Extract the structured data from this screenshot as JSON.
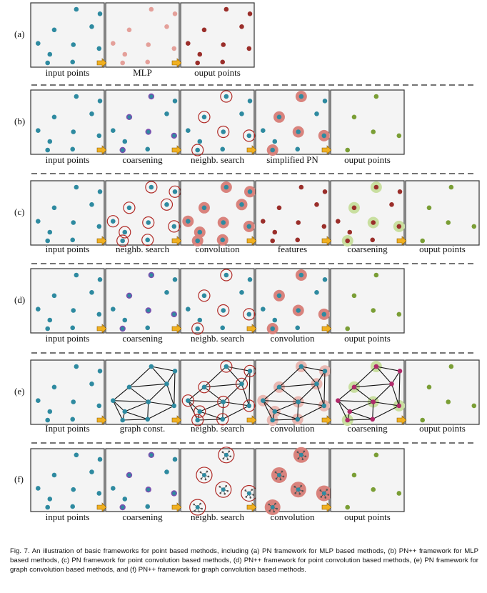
{
  "rows": [
    {
      "label": "(a)",
      "panels": [
        {
          "label": "input points",
          "type": "input"
        },
        {
          "label": "MLP",
          "type": "mlp"
        },
        {
          "label": "ouput points",
          "type": "output_red"
        }
      ]
    },
    {
      "label": "(b)",
      "panels": [
        {
          "label": "input points",
          "type": "input"
        },
        {
          "label": "coarsening",
          "type": "coarsen"
        },
        {
          "label": "neighb. search",
          "type": "neigh"
        },
        {
          "label": "simplified PN",
          "type": "simplepn"
        },
        {
          "label": "ouput points",
          "type": "green"
        }
      ]
    },
    {
      "label": "(c)",
      "panels": [
        {
          "label": "input points",
          "type": "input"
        },
        {
          "label": "neighb. search",
          "type": "neigh_all"
        },
        {
          "label": "convolution",
          "type": "conv_all"
        },
        {
          "label": "features",
          "type": "features"
        },
        {
          "label": "coarsening",
          "type": "coarsen_green"
        },
        {
          "label": "ouput points",
          "type": "green"
        }
      ]
    },
    {
      "label": "(d)",
      "panels": [
        {
          "label": "input points",
          "type": "input"
        },
        {
          "label": "coarsening",
          "type": "coarsen"
        },
        {
          "label": "neighb. search",
          "type": "neigh"
        },
        {
          "label": "convolution",
          "type": "conv"
        },
        {
          "label": "ouput points",
          "type": "green"
        }
      ]
    },
    {
      "label": "(e)",
      "panels": [
        {
          "label": "Input points",
          "type": "input"
        },
        {
          "label": "graph const.",
          "type": "graph"
        },
        {
          "label": "neighb. search",
          "type": "graph_neigh"
        },
        {
          "label": "convolution",
          "type": "graph_conv"
        },
        {
          "label": "coarsening",
          "type": "graph_coarsen"
        },
        {
          "label": "ouput points",
          "type": "green"
        }
      ]
    },
    {
      "label": "(f)",
      "panels": [
        {
          "label": "input points",
          "type": "input"
        },
        {
          "label": "coarsening",
          "type": "coarsen"
        },
        {
          "label": "neighb. search",
          "type": "mini_neigh"
        },
        {
          "label": "convolution",
          "type": "mini_conv"
        },
        {
          "label": "ouput points",
          "type": "green"
        }
      ]
    }
  ],
  "caption": "Fig. 7.  An illustration of basic frameworks for point based methods, including (a) PN framework for MLP based methods, (b) PN++ framework for MLP based methods, (c) PN framework for point convolution based methods, (d) PN++ framework for point convolution based methods, (e) PN framework for graph convolution based methods, and (f) PN++ framework for graph convolution based methods.",
  "colors": {
    "teal": "#2e8aa0",
    "pink": "#e4a09a",
    "darkred": "#9a2e2a",
    "green": "#7a9e35",
    "purple": "#7b4fb0",
    "ring": "#b02a26",
    "halo": "#d9837d",
    "greenhalo": "#c9dfa0",
    "magenta": "#b02a6a",
    "panelbg": "#f4f4f4",
    "arrow": "#f0b020"
  }
}
